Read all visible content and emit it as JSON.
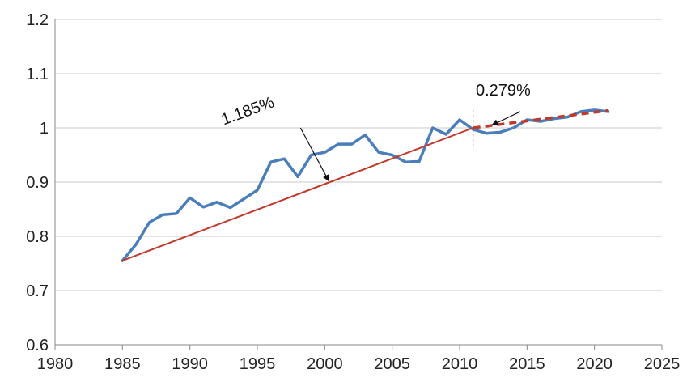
{
  "chart_data": {
    "type": "line",
    "title": "",
    "xlabel": "",
    "ylabel": "",
    "xlim": [
      1980,
      2025
    ],
    "ylim": [
      0.6,
      1.2
    ],
    "x_ticks": [
      1980,
      1985,
      1990,
      1995,
      2000,
      2005,
      2010,
      2015,
      2020,
      2025
    ],
    "x_tick_labels": [
      "1980",
      "1985",
      "1990",
      "1995",
      "2000",
      "2005",
      "2010",
      "2015",
      "2020",
      "2025"
    ],
    "y_ticks": [
      0.6,
      0.7,
      0.8,
      0.9,
      1.0,
      1.1,
      1.2
    ],
    "y_tick_labels": [
      "0.6",
      "0.7",
      "0.8",
      "0.9",
      "1",
      "1.1",
      "1.2"
    ],
    "grid": "horizontal",
    "legend": "none",
    "series": [
      {
        "kind": "observed",
        "color": "#4a7ebb",
        "style": "solid",
        "x": [
          1985,
          1986,
          1987,
          1988,
          1989,
          1990,
          1991,
          1992,
          1993,
          1994,
          1995,
          1996,
          1997,
          1998,
          1999,
          2000,
          2001,
          2002,
          2003,
          2004,
          2005,
          2006,
          2007,
          2008,
          2009,
          2010,
          2011,
          2012,
          2013,
          2014,
          2015,
          2016,
          2017,
          2018,
          2019,
          2020,
          2021
        ],
        "y": [
          0.755,
          0.785,
          0.826,
          0.84,
          0.842,
          0.871,
          0.854,
          0.863,
          0.853,
          0.869,
          0.885,
          0.937,
          0.943,
          0.91,
          0.95,
          0.955,
          0.97,
          0.97,
          0.987,
          0.955,
          0.95,
          0.937,
          0.938,
          1.0,
          0.988,
          1.015,
          0.997,
          0.99,
          0.992,
          1.0,
          1.015,
          1.012,
          1.017,
          1.02,
          1.03,
          1.033,
          1.03
        ]
      },
      {
        "kind": "trend",
        "color": "#c0392b",
        "style": "solid",
        "x": [
          1985,
          2011
        ],
        "y": [
          0.755,
          1.0
        ]
      },
      {
        "kind": "trend",
        "color": "#c0392b",
        "style": "dashed",
        "x": [
          2011,
          2021
        ],
        "y": [
          1.0,
          1.032
        ]
      }
    ],
    "divider": {
      "x": 2011,
      "y_from": 0.96,
      "y_to": 1.033
    },
    "annotations": [
      {
        "text": "1.185%",
        "x": 2000.3,
        "y": 0.902,
        "text_x": 1992.5,
        "text_y": 1.005,
        "rotate": -20,
        "arrow_from_x": 1998.2,
        "arrow_from_y": 1.0
      },
      {
        "text": "0.279%",
        "x": 2012.4,
        "y": 1.005,
        "text_x": 2011.2,
        "text_y": 1.06,
        "rotate": 0,
        "arrow_from_x": 2014.5,
        "arrow_from_y": 1.03
      }
    ]
  }
}
